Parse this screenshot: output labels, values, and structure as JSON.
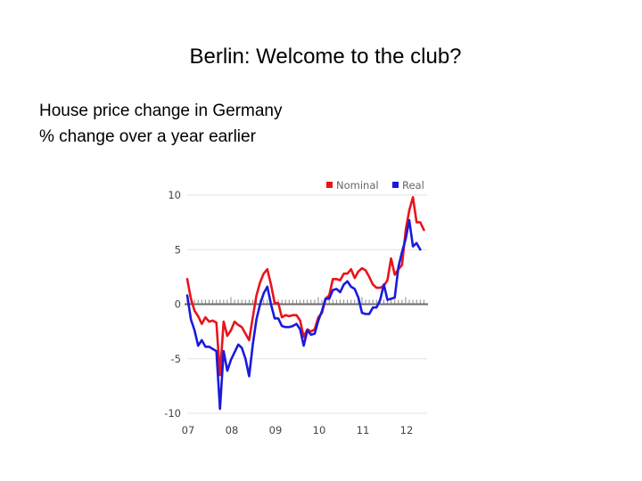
{
  "slide": {
    "title": "Berlin: Welcome to the club?",
    "subtitle": "House price change in Germany",
    "subtitle2": "% change over a year earlier"
  },
  "chart_data": {
    "type": "line",
    "title": "",
    "xlabel": "",
    "ylabel": "",
    "x_start": 2007.0,
    "x_step": 0.0833333,
    "xlim": [
      2007.0,
      2012.45
    ],
    "ylim": [
      -10,
      10
    ],
    "yticks": [
      -10,
      -5,
      0,
      5,
      10
    ],
    "xticks": [
      {
        "label": "07",
        "x": 2007.0
      },
      {
        "label": "08",
        "x": 2008.0
      },
      {
        "label": "09",
        "x": 2009.0
      },
      {
        "label": "10",
        "x": 2010.0
      },
      {
        "label": "11",
        "x": 2011.0
      },
      {
        "label": "12",
        "x": 2012.0
      }
    ],
    "grid": true,
    "legend_position": "top-right",
    "series": [
      {
        "name": "Nominal",
        "color": "#e8141c",
        "values": [
          2.3,
          0.5,
          -0.6,
          -1.1,
          -1.8,
          -1.2,
          -1.6,
          -1.5,
          -1.7,
          -6.5,
          -1.6,
          -2.9,
          -2.4,
          -1.6,
          -1.9,
          -2.1,
          -2.7,
          -3.3,
          -1.2,
          0.8,
          2.0,
          2.8,
          3.2,
          1.8,
          0.1,
          0.1,
          -1.2,
          -1.0,
          -1.1,
          -1.0,
          -1.0,
          -1.5,
          -3.0,
          -2.3,
          -2.5,
          -2.3,
          -1.2,
          -0.8,
          0.5,
          0.8,
          2.3,
          2.3,
          2.2,
          2.8,
          2.8,
          3.2,
          2.4,
          3.0,
          3.3,
          3.1,
          2.5,
          1.8,
          1.5,
          1.5,
          1.7,
          2.2,
          4.2,
          2.7,
          3.2,
          3.6,
          6.8,
          8.6,
          9.8,
          7.5,
          7.5,
          6.8
        ]
      },
      {
        "name": "Real",
        "color": "#1a1adc",
        "values": [
          0.8,
          -1.4,
          -2.4,
          -3.8,
          -3.3,
          -3.9,
          -3.9,
          -4.1,
          -4.3,
          -9.6,
          -4.3,
          -6.1,
          -5.1,
          -4.4,
          -3.7,
          -4.0,
          -5.0,
          -6.6,
          -3.7,
          -1.4,
          0.0,
          1.0,
          1.6,
          0.0,
          -1.3,
          -1.3,
          -2.0,
          -2.1,
          -2.1,
          -2.0,
          -1.8,
          -2.3,
          -3.8,
          -2.4,
          -2.8,
          -2.7,
          -1.5,
          -0.6,
          0.5,
          0.5,
          1.3,
          1.4,
          1.1,
          1.8,
          2.1,
          1.6,
          1.4,
          0.6,
          -0.8,
          -0.9,
          -0.9,
          -0.3,
          -0.3,
          0.4,
          1.8,
          0.4,
          0.5,
          0.6,
          3.4,
          4.8,
          6.0,
          7.7,
          5.3,
          5.6,
          5.0
        ]
      }
    ]
  }
}
